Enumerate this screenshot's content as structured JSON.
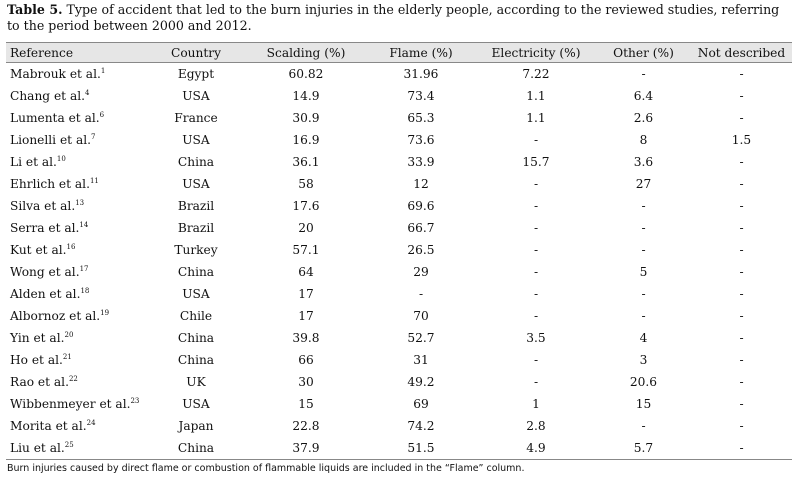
{
  "caption": {
    "label": "Table 5.",
    "text": " Type of accident that led to the burn injuries in the elderly people, according to the reviewed studies, referring to the period between 2000 and 2012."
  },
  "table": {
    "headers": [
      "Reference",
      "Country",
      "Scalding (%)",
      "Flame (%)",
      "Electricity (%)",
      "Other (%)",
      "Not described"
    ],
    "rows": [
      {
        "ref": "Mabrouk et al.",
        "sup": "1",
        "country": "Egypt",
        "scalding": "60.82",
        "flame": "31.96",
        "electricity": "7.22",
        "other": "-",
        "nd": "-"
      },
      {
        "ref": "Chang et al.",
        "sup": "4",
        "country": "USA",
        "scalding": "14.9",
        "flame": "73.4",
        "electricity": "1.1",
        "other": "6.4",
        "nd": "-"
      },
      {
        "ref": "Lumenta et al.",
        "sup": "6",
        "country": "France",
        "scalding": "30.9",
        "flame": "65.3",
        "electricity": "1.1",
        "other": "2.6",
        "nd": "-"
      },
      {
        "ref": "Lionelli et al.",
        "sup": "7",
        "country": "USA",
        "scalding": "16.9",
        "flame": "73.6",
        "electricity": "-",
        "other": "8",
        "nd": "1.5"
      },
      {
        "ref": "Li et al.",
        "sup": "10",
        "country": "China",
        "scalding": "36.1",
        "flame": "33.9",
        "electricity": "15.7",
        "other": "3.6",
        "nd": "-"
      },
      {
        "ref": "Ehrlich et al.",
        "sup": "11",
        "country": "USA",
        "scalding": "58",
        "flame": "12",
        "electricity": "-",
        "other": "27",
        "nd": "-"
      },
      {
        "ref": "Silva et al.",
        "sup": "13",
        "country": "Brazil",
        "scalding": "17.6",
        "flame": "69.6",
        "electricity": "-",
        "other": "-",
        "nd": "-"
      },
      {
        "ref": "Serra et al.",
        "sup": "14",
        "country": "Brazil",
        "scalding": "20",
        "flame": "66.7",
        "electricity": "-",
        "other": "-",
        "nd": "-"
      },
      {
        "ref": "Kut et al.",
        "sup": "16",
        "country": "Turkey",
        "scalding": "57.1",
        "flame": "26.5",
        "electricity": "-",
        "other": "-",
        "nd": "-"
      },
      {
        "ref": "Wong et al.",
        "sup": "17",
        "country": "China",
        "scalding": "64",
        "flame": "29",
        "electricity": "-",
        "other": "5",
        "nd": "-"
      },
      {
        "ref": "Alden et al.",
        "sup": "18",
        "country": "USA",
        "scalding": "17",
        "flame": "-",
        "electricity": "-",
        "other": "-",
        "nd": "-"
      },
      {
        "ref": "Albornoz et al.",
        "sup": "19",
        "country": "Chile",
        "scalding": "17",
        "flame": "70",
        "electricity": "-",
        "other": "-",
        "nd": "-"
      },
      {
        "ref": "Yin et al.",
        "sup": "20",
        "country": "China",
        "scalding": "39.8",
        "flame": "52.7",
        "electricity": "3.5",
        "other": "4",
        "nd": "-"
      },
      {
        "ref": "Ho et al.",
        "sup": "21",
        "country": "China",
        "scalding": "66",
        "flame": "31",
        "electricity": "-",
        "other": "3",
        "nd": "-"
      },
      {
        "ref": "Rao et al.",
        "sup": "22",
        "country": "UK",
        "scalding": "30",
        "flame": "49.2",
        "electricity": "-",
        "other": "20.6",
        "nd": "-"
      },
      {
        "ref": "Wibbenmeyer et al.",
        "sup": "23",
        "country": "USA",
        "scalding": "15",
        "flame": "69",
        "electricity": "1",
        "other": "15",
        "nd": "-"
      },
      {
        "ref": "Morita et al.",
        "sup": "24",
        "country": "Japan",
        "scalding": "22.8",
        "flame": "74.2",
        "electricity": "2.8",
        "other": "-",
        "nd": "-"
      },
      {
        "ref": "Liu et al.",
        "sup": "25",
        "country": "China",
        "scalding": "37.9",
        "flame": "51.5",
        "electricity": "4.9",
        "other": "5.7",
        "nd": "-"
      }
    ]
  },
  "footnote": "Burn injuries caused by direct flame or combustion of flammable liquids are included in the “Flame” column."
}
